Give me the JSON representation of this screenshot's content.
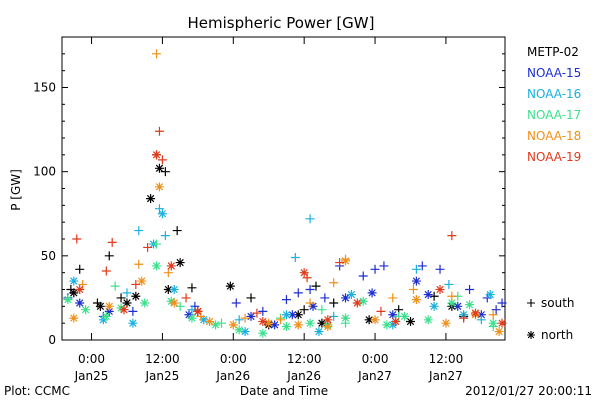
{
  "chart_data": {
    "type": "scatter",
    "title": "Hemispheric Power [GW]",
    "ylabel": "P [GW]",
    "xlabel": "Date and Time",
    "ylim": [
      0,
      180
    ],
    "yticks": [
      0,
      50,
      100,
      150
    ],
    "xlim": [
      "2012-01-24T19:00",
      "2012-01-27T22:00"
    ],
    "xticks": [
      {
        "time": "2012-01-25T00:00",
        "label": "0:00",
        "sublabel": "Jan25"
      },
      {
        "time": "2012-01-25T12:00",
        "label": "12:00",
        "sublabel": "Jan25"
      },
      {
        "time": "2012-01-26T00:00",
        "label": "0:00",
        "sublabel": "Jan26"
      },
      {
        "time": "2012-01-26T12:00",
        "label": "12:00",
        "sublabel": "Jan26"
      },
      {
        "time": "2012-01-27T00:00",
        "label": "0:00",
        "sublabel": "Jan27"
      },
      {
        "time": "2012-01-27T12:00",
        "label": "12:00",
        "sublabel": "Jan27"
      }
    ],
    "marker_legend": [
      {
        "symbol": "+",
        "label": "south"
      },
      {
        "symbol": "*",
        "label": "north"
      }
    ],
    "series": [
      {
        "name": "METP-02",
        "color": "#000000",
        "south": [
          [
            "2012-01-24T20:30",
            30
          ],
          [
            "2012-01-24T22:00",
            42
          ],
          [
            "2012-01-25T01:00",
            22
          ],
          [
            "2012-01-25T03:00",
            50
          ],
          [
            "2012-01-25T05:00",
            25
          ],
          [
            "2012-01-25T11:00",
            110
          ],
          [
            "2012-01-25T12:30",
            100
          ],
          [
            "2012-01-25T14:30",
            65
          ],
          [
            "2012-01-25T17:00",
            31
          ],
          [
            "2012-01-26T03:00",
            25
          ],
          [
            "2012-01-26T12:00",
            18
          ],
          [
            "2012-01-26T14:00",
            32
          ],
          [
            "2012-01-26T17:00",
            22
          ],
          [
            "2012-01-27T04:00",
            18
          ],
          [
            "2012-01-27T10:00",
            26
          ],
          [
            "2012-01-27T15:00",
            14
          ]
        ],
        "north": [
          [
            "2012-01-24T21:00",
            28
          ],
          [
            "2012-01-25T01:30",
            20
          ],
          [
            "2012-01-25T06:00",
            22
          ],
          [
            "2012-01-25T07:30",
            26
          ],
          [
            "2012-01-25T10:00",
            84
          ],
          [
            "2012-01-25T11:30",
            102
          ],
          [
            "2012-01-25T13:00",
            30
          ],
          [
            "2012-01-25T15:00",
            46
          ],
          [
            "2012-01-25T18:00",
            17
          ],
          [
            "2012-01-25T23:30",
            32
          ],
          [
            "2012-01-26T06:00",
            9
          ],
          [
            "2012-01-26T11:00",
            15
          ],
          [
            "2012-01-26T15:00",
            10
          ],
          [
            "2012-01-26T23:00",
            12
          ],
          [
            "2012-01-27T06:00",
            11
          ],
          [
            "2012-01-27T13:00",
            20
          ]
        ]
      },
      {
        "name": "NOAA-15",
        "color": "#1e2fd0",
        "south": [
          [
            "2012-01-24T20:00",
            25
          ],
          [
            "2012-01-25T02:00",
            14
          ],
          [
            "2012-01-25T07:00",
            17
          ],
          [
            "2012-01-25T17:30",
            20
          ],
          [
            "2012-01-26T00:30",
            22
          ],
          [
            "2012-01-26T05:00",
            17
          ],
          [
            "2012-01-26T09:00",
            24
          ],
          [
            "2012-01-26T11:00",
            28
          ],
          [
            "2012-01-26T13:00",
            30
          ],
          [
            "2012-01-26T15:30",
            25
          ],
          [
            "2012-01-26T18:00",
            44
          ],
          [
            "2012-01-26T22:00",
            38
          ],
          [
            "2012-01-27T00:00",
            42
          ],
          [
            "2012-01-27T01:30",
            44
          ],
          [
            "2012-01-27T08:00",
            44
          ],
          [
            "2012-01-27T11:00",
            42
          ],
          [
            "2012-01-27T16:00",
            30
          ],
          [
            "2012-01-27T19:00",
            25
          ],
          [
            "2012-01-27T20:30",
            18
          ],
          [
            "2012-01-27T21:30",
            22
          ]
        ],
        "north": [
          [
            "2012-01-24T22:00",
            22
          ],
          [
            "2012-01-25T03:00",
            17
          ],
          [
            "2012-01-25T16:30",
            15
          ],
          [
            "2012-01-26T03:00",
            14
          ],
          [
            "2012-01-26T07:00",
            9
          ],
          [
            "2012-01-26T10:00",
            15
          ],
          [
            "2012-01-26T13:30",
            20
          ],
          [
            "2012-01-26T19:00",
            25
          ],
          [
            "2012-01-26T23:30",
            28
          ],
          [
            "2012-01-27T03:00",
            15
          ],
          [
            "2012-01-27T07:00",
            35
          ],
          [
            "2012-01-27T09:00",
            27
          ],
          [
            "2012-01-27T14:00",
            20
          ],
          [
            "2012-01-27T18:00",
            15
          ]
        ]
      },
      {
        "name": "NOAA-16",
        "color": "#1ab0e0",
        "south": [
          [
            "2012-01-25T06:00",
            28
          ],
          [
            "2012-01-25T08:00",
            65
          ],
          [
            "2012-01-25T11:30",
            78
          ],
          [
            "2012-01-25T12:30",
            62
          ],
          [
            "2012-01-25T17:00",
            18
          ],
          [
            "2012-01-26T01:00",
            12
          ],
          [
            "2012-01-26T10:30",
            49
          ],
          [
            "2012-01-26T13:00",
            72
          ],
          [
            "2012-01-26T17:00",
            14
          ],
          [
            "2012-01-27T07:00",
            42
          ],
          [
            "2012-01-27T12:30",
            33
          ],
          [
            "2012-01-27T18:00",
            12
          ]
        ],
        "north": [
          [
            "2012-01-24T21:00",
            35
          ],
          [
            "2012-01-25T02:00",
            12
          ],
          [
            "2012-01-25T07:00",
            10
          ],
          [
            "2012-01-25T10:30",
            57
          ],
          [
            "2012-01-25T12:00",
            75
          ],
          [
            "2012-01-25T14:00",
            30
          ],
          [
            "2012-01-25T19:00",
            12
          ],
          [
            "2012-01-26T02:00",
            5
          ],
          [
            "2012-01-26T09:00",
            15
          ],
          [
            "2012-01-26T14:30",
            5
          ],
          [
            "2012-01-26T20:00",
            27
          ],
          [
            "2012-01-27T03:00",
            9
          ],
          [
            "2012-01-27T10:00",
            20
          ],
          [
            "2012-01-27T15:00",
            15
          ],
          [
            "2012-01-27T19:30",
            27
          ]
        ]
      },
      {
        "name": "NOAA-17",
        "color": "#3ce08c",
        "south": [
          [
            "2012-01-25T04:00",
            32
          ],
          [
            "2012-01-25T11:00",
            57
          ],
          [
            "2012-01-25T15:00",
            20
          ],
          [
            "2012-01-25T22:00",
            10
          ],
          [
            "2012-01-26T08:00",
            13
          ],
          [
            "2012-01-26T15:00",
            18
          ],
          [
            "2012-01-26T19:00",
            10
          ],
          [
            "2012-01-27T04:00",
            14
          ],
          [
            "2012-01-27T14:00",
            26
          ],
          [
            "2012-01-27T20:00",
            8
          ]
        ],
        "north": [
          [
            "2012-01-24T20:00",
            24
          ],
          [
            "2012-01-24T23:00",
            18
          ],
          [
            "2012-01-25T02:30",
            14
          ],
          [
            "2012-01-25T05:00",
            19
          ],
          [
            "2012-01-25T09:00",
            22
          ],
          [
            "2012-01-25T11:00",
            44
          ],
          [
            "2012-01-25T13:30",
            23
          ],
          [
            "2012-01-25T17:00",
            13
          ],
          [
            "2012-01-25T21:00",
            9
          ],
          [
            "2012-01-26T01:00",
            6
          ],
          [
            "2012-01-26T05:00",
            4
          ],
          [
            "2012-01-26T09:00",
            8
          ],
          [
            "2012-01-26T13:00",
            10
          ],
          [
            "2012-01-26T16:00",
            9
          ],
          [
            "2012-01-26T19:00",
            13
          ],
          [
            "2012-01-26T22:00",
            23
          ],
          [
            "2012-01-27T02:00",
            9
          ],
          [
            "2012-01-27T05:00",
            14
          ],
          [
            "2012-01-27T09:00",
            12
          ],
          [
            "2012-01-27T13:00",
            22
          ],
          [
            "2012-01-27T16:00",
            21
          ],
          [
            "2012-01-27T20:00",
            10
          ]
        ]
      },
      {
        "name": "NOAA-18",
        "color": "#f0901a",
        "south": [
          [
            "2012-01-24T22:30",
            33
          ],
          [
            "2012-01-25T08:00",
            45
          ],
          [
            "2012-01-25T11:00",
            170
          ],
          [
            "2012-01-25T13:00",
            40
          ],
          [
            "2012-01-25T18:30",
            14
          ],
          [
            "2012-01-26T02:00",
            13
          ],
          [
            "2012-01-26T08:00",
            12
          ],
          [
            "2012-01-26T13:00",
            22
          ],
          [
            "2012-01-26T17:00",
            34
          ],
          [
            "2012-01-26T19:00",
            48
          ],
          [
            "2012-01-27T03:00",
            25
          ],
          [
            "2012-01-27T06:30",
            30
          ],
          [
            "2012-01-27T13:00",
            26
          ],
          [
            "2012-01-27T20:00",
            15
          ]
        ],
        "north": [
          [
            "2012-01-24T21:00",
            13
          ],
          [
            "2012-01-25T03:00",
            20
          ],
          [
            "2012-01-25T08:30",
            35
          ],
          [
            "2012-01-25T11:30",
            91
          ],
          [
            "2012-01-25T14:00",
            22
          ],
          [
            "2012-01-25T20:00",
            11
          ],
          [
            "2012-01-26T00:00",
            9
          ],
          [
            "2012-01-26T06:00",
            10
          ],
          [
            "2012-01-26T11:00",
            9
          ],
          [
            "2012-01-26T16:00",
            8
          ],
          [
            "2012-01-26T19:00",
            47
          ],
          [
            "2012-01-27T00:00",
            12
          ],
          [
            "2012-01-27T07:00",
            24
          ],
          [
            "2012-01-27T12:00",
            10
          ],
          [
            "2012-01-27T17:00",
            15
          ],
          [
            "2012-01-27T21:00",
            5
          ]
        ]
      },
      {
        "name": "NOAA-19",
        "color": "#e03a1a",
        "south": [
          [
            "2012-01-24T21:30",
            60
          ],
          [
            "2012-01-25T02:30",
            41
          ],
          [
            "2012-01-25T03:30",
            58
          ],
          [
            "2012-01-25T07:30",
            33
          ],
          [
            "2012-01-25T09:30",
            55
          ],
          [
            "2012-01-25T11:30",
            124
          ],
          [
            "2012-01-25T12:00",
            107
          ],
          [
            "2012-01-25T16:00",
            25
          ],
          [
            "2012-01-26T04:00",
            16
          ],
          [
            "2012-01-26T12:30",
            37
          ],
          [
            "2012-01-26T18:00",
            46
          ],
          [
            "2012-01-27T01:00",
            17
          ],
          [
            "2012-01-27T13:00",
            62
          ],
          [
            "2012-01-27T15:00",
            13
          ]
        ],
        "north": [
          [
            "2012-01-24T22:00",
            30
          ],
          [
            "2012-01-25T05:30",
            18
          ],
          [
            "2012-01-25T11:00",
            110
          ],
          [
            "2012-01-25T13:30",
            44
          ],
          [
            "2012-01-25T18:00",
            17
          ],
          [
            "2012-01-26T05:00",
            11
          ],
          [
            "2012-01-26T12:00",
            40
          ],
          [
            "2012-01-26T16:00",
            12
          ],
          [
            "2012-01-26T21:00",
            22
          ],
          [
            "2012-01-27T03:30",
            11
          ],
          [
            "2012-01-27T11:00",
            30
          ],
          [
            "2012-01-27T17:00",
            16
          ],
          [
            "2012-01-27T21:30",
            10
          ]
        ]
      }
    ]
  },
  "footer": {
    "credit": "Plot: CCMC",
    "timestamp": "2012/01/27 20:00:11"
  }
}
